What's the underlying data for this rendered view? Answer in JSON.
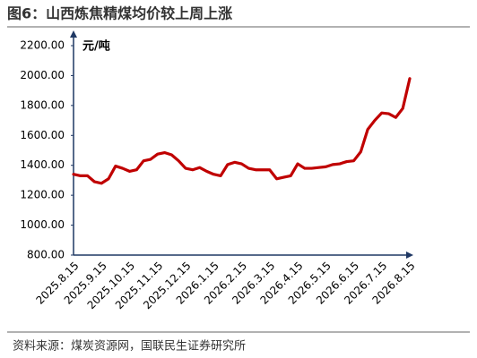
{
  "chart_data": {
    "type": "line",
    "title": "图6：山西炼焦精煤均价较上周上涨",
    "y_label": "元/吨",
    "source": "资料来源：煤炭资源网，国联民生证券研究所",
    "categories": [
      "2025.8.15",
      null,
      null,
      null,
      "2025.9.15",
      null,
      null,
      null,
      "2025.10.15",
      null,
      null,
      null,
      "2025.11.15",
      null,
      null,
      null,
      "2025.12.15",
      null,
      null,
      null,
      "2026.1.15",
      null,
      null,
      null,
      "2026.2.15",
      null,
      null,
      null,
      "2026.3.15",
      null,
      null,
      null,
      "2026.4.15",
      null,
      null,
      null,
      "2026.5.15",
      null,
      null,
      null,
      "2026.6.15",
      null,
      null,
      null,
      "2026.7.15",
      null,
      null,
      null,
      "2026.8.15"
    ],
    "values": [
      1340,
      1330,
      1330,
      1290,
      1280,
      1310,
      1395,
      1380,
      1360,
      1370,
      1430,
      1440,
      1475,
      1485,
      1470,
      1430,
      1380,
      1370,
      1385,
      1360,
      1340,
      1330,
      1405,
      1420,
      1410,
      1380,
      1370,
      1370,
      1370,
      1310,
      1320,
      1330,
      1410,
      1380,
      1380,
      1385,
      1390,
      1405,
      1410,
      1425,
      1430,
      1490,
      1640,
      1700,
      1750,
      1745,
      1720,
      1780,
      1980
    ],
    "color": "#c00000",
    "ylim": [
      800,
      2200
    ],
    "yticks": [
      {
        "value": 800,
        "label": "800.00"
      },
      {
        "value": 1000,
        "label": "1000.00"
      },
      {
        "value": 1200,
        "label": "1200.00"
      },
      {
        "value": 1400,
        "label": "1400.00"
      },
      {
        "value": 1600,
        "label": "1600.00"
      },
      {
        "value": 1800,
        "label": "1800.00"
      },
      {
        "value": 2000,
        "label": "2000.00"
      },
      {
        "value": 2200,
        "label": "2200.00"
      }
    ],
    "grid": false
  }
}
